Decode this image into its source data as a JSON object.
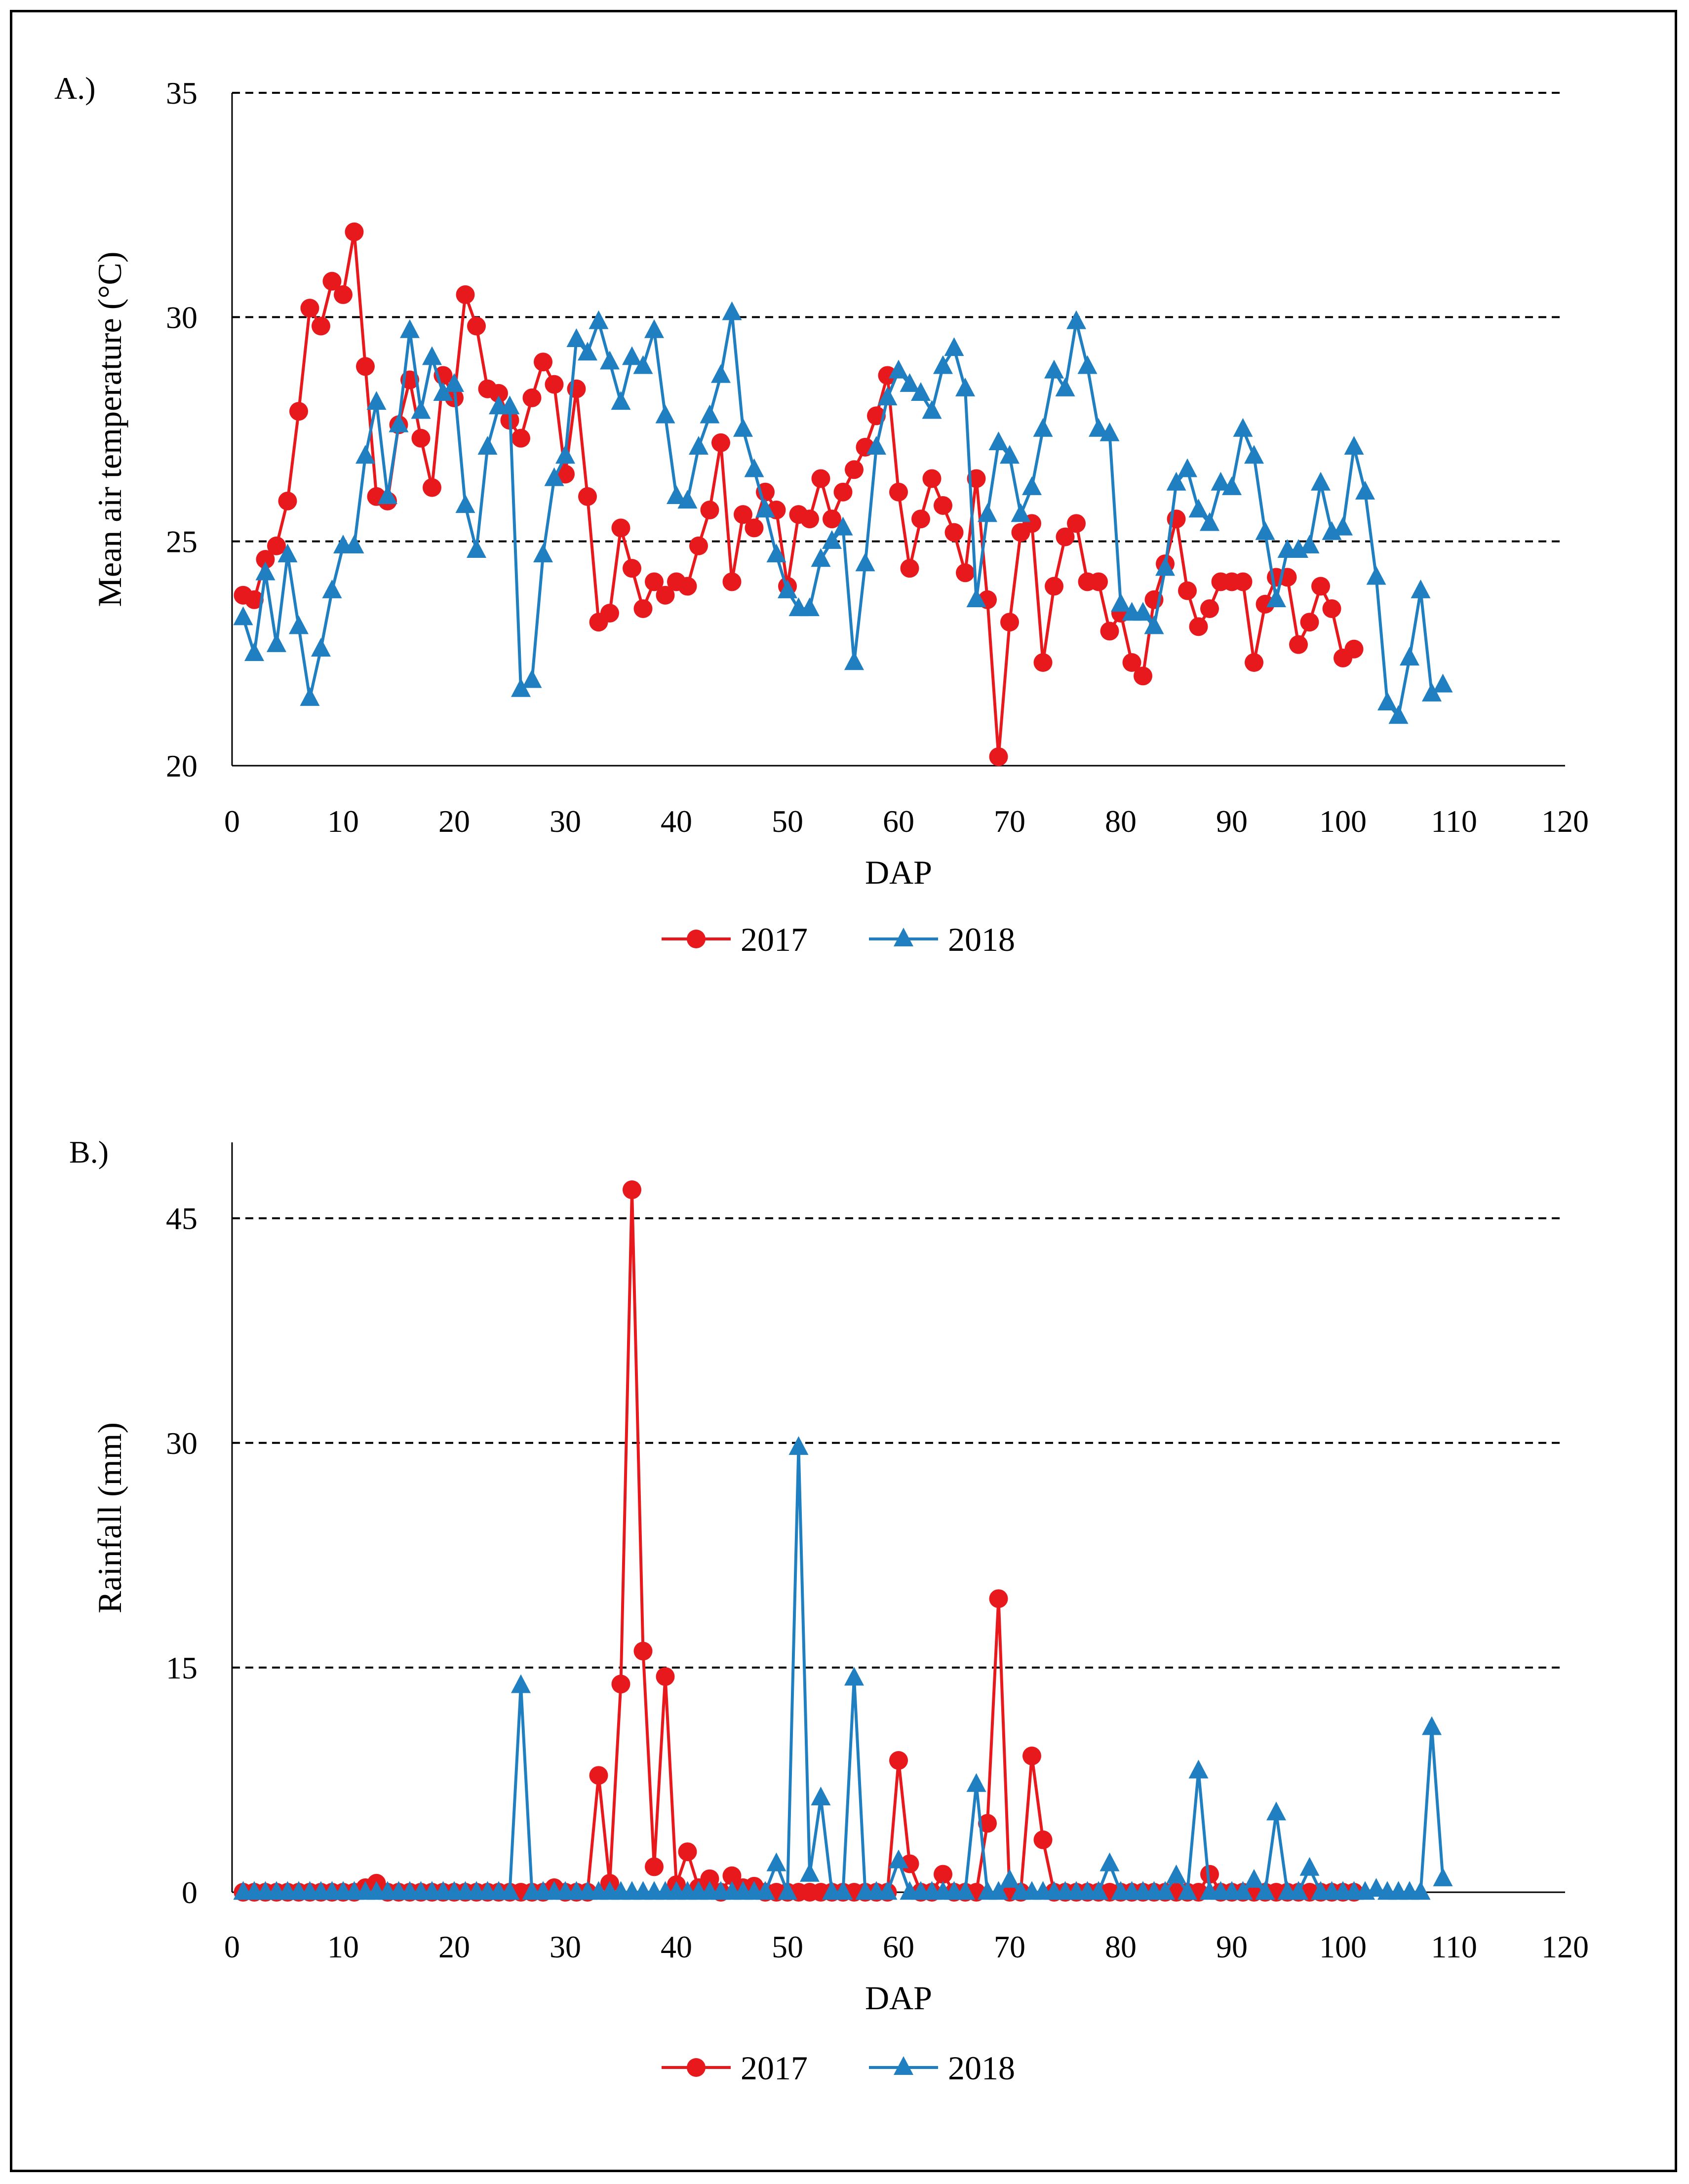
{
  "chart_data": [
    {
      "type": "line",
      "panel_label": "A.)",
      "title": "",
      "xlabel": "DAP",
      "ylabel": "Mean air temperature (°C)",
      "xlim": [
        0,
        120
      ],
      "ylim": [
        20,
        35
      ],
      "xticks": [
        0,
        10,
        20,
        30,
        40,
        50,
        60,
        70,
        80,
        90,
        100,
        110,
        120
      ],
      "yticks": [
        20,
        25,
        30,
        35
      ],
      "grid": "dashed horizontal",
      "legend": "bottom-center",
      "series": [
        {
          "name": "2017",
          "marker": "circle",
          "color": "#e8191c",
          "x": [
            1,
            2,
            3,
            4,
            5,
            6,
            7,
            8,
            9,
            10,
            11,
            12,
            13,
            14,
            15,
            16,
            17,
            18,
            19,
            20,
            21,
            22,
            23,
            24,
            25,
            26,
            27,
            28,
            29,
            30,
            31,
            32,
            33,
            34,
            35,
            36,
            37,
            38,
            39,
            40,
            41,
            42,
            43,
            44,
            45,
            46,
            47,
            48,
            49,
            50,
            51,
            52,
            53,
            54,
            55,
            56,
            57,
            58,
            59,
            60,
            61,
            62,
            63,
            64,
            65,
            66,
            67,
            68,
            69,
            70,
            71,
            72,
            73,
            74,
            75,
            76,
            77,
            78,
            79,
            80,
            81,
            82,
            83,
            84,
            85,
            86,
            87,
            88,
            89,
            90,
            91,
            92,
            93,
            94,
            95,
            96,
            97,
            98,
            99,
            100,
            101
          ],
          "y": [
            23.8,
            23.7,
            24.6,
            24.9,
            25.9,
            27.9,
            30.2,
            29.8,
            30.8,
            30.5,
            31.9,
            28.9,
            26.0,
            25.9,
            27.6,
            28.6,
            27.3,
            26.2,
            28.7,
            28.2,
            30.5,
            29.8,
            28.4,
            28.3,
            27.7,
            27.3,
            28.2,
            29.0,
            28.5,
            26.5,
            28.4,
            26.0,
            23.2,
            23.4,
            25.3,
            24.4,
            23.5,
            24.1,
            23.8,
            24.1,
            24.0,
            24.9,
            25.7,
            27.2,
            24.1,
            25.6,
            25.3,
            26.1,
            25.7,
            24.0,
            25.6,
            25.5,
            26.4,
            25.5,
            26.1,
            26.6,
            27.1,
            27.8,
            28.7,
            26.1,
            24.4,
            25.5,
            26.4,
            25.8,
            25.2,
            24.3,
            26.4,
            23.7,
            20.2,
            23.2,
            25.2,
            25.4,
            22.3,
            24.0,
            25.1,
            25.4,
            24.1,
            24.1,
            23.0,
            23.4,
            22.3,
            22.0,
            23.7,
            24.5,
            25.5,
            23.9,
            23.1,
            23.5,
            24.1,
            24.1,
            24.1,
            22.3,
            23.6,
            24.2,
            24.2,
            22.7,
            23.2,
            24.0,
            23.5,
            22.4,
            22.6
          ]
        },
        {
          "name": "2018",
          "marker": "triangle",
          "color": "#1f7fc0",
          "x": [
            1,
            2,
            3,
            4,
            5,
            6,
            7,
            8,
            9,
            10,
            11,
            12,
            13,
            14,
            15,
            16,
            17,
            18,
            19,
            20,
            21,
            22,
            23,
            24,
            25,
            26,
            27,
            28,
            29,
            30,
            31,
            32,
            33,
            34,
            35,
            36,
            37,
            38,
            39,
            40,
            41,
            42,
            43,
            44,
            45,
            46,
            47,
            48,
            49,
            50,
            51,
            52,
            53,
            54,
            55,
            56,
            57,
            58,
            59,
            60,
            61,
            62,
            63,
            64,
            65,
            66,
            67,
            68,
            69,
            70,
            71,
            72,
            73,
            74,
            75,
            76,
            77,
            78,
            79,
            80,
            81,
            82,
            83,
            84,
            85,
            86,
            87,
            88,
            89,
            90,
            91,
            92,
            93,
            94,
            95,
            96,
            97,
            98,
            99,
            100,
            101,
            102,
            103,
            104,
            105,
            106,
            107,
            108,
            109
          ],
          "y": [
            23.3,
            22.5,
            24.3,
            22.7,
            24.7,
            23.1,
            21.5,
            22.6,
            23.9,
            24.9,
            24.9,
            26.9,
            28.1,
            26.0,
            27.6,
            29.7,
            27.9,
            29.1,
            28.3,
            28.5,
            25.8,
            24.8,
            27.1,
            28.0,
            28.0,
            21.7,
            21.9,
            24.7,
            26.4,
            26.9,
            29.5,
            29.2,
            29.9,
            29.0,
            28.1,
            29.1,
            28.9,
            29.7,
            27.8,
            26.0,
            25.9,
            27.1,
            27.8,
            28.7,
            30.1,
            27.5,
            26.6,
            25.7,
            24.7,
            23.9,
            23.5,
            23.5,
            24.6,
            25.0,
            25.3,
            22.3,
            24.5,
            27.1,
            28.2,
            28.8,
            28.5,
            28.3,
            27.9,
            28.9,
            29.3,
            28.4,
            23.7,
            25.6,
            27.2,
            26.9,
            25.6,
            26.2,
            27.5,
            28.8,
            28.4,
            29.9,
            28.9,
            27.5,
            27.4,
            23.6,
            23.4,
            23.4,
            23.1,
            24.4,
            26.3,
            26.6,
            25.7,
            25.4,
            26.3,
            26.2,
            27.5,
            26.9,
            25.2,
            23.7,
            24.8,
            24.8,
            24.9,
            26.3,
            25.2,
            25.3,
            27.1,
            26.1,
            24.2,
            21.4,
            21.1,
            22.4,
            23.9,
            21.6,
            21.8
          ]
        }
      ]
    },
    {
      "type": "line",
      "panel_label": "B.)",
      "title": "",
      "xlabel": "DAP",
      "ylabel": "Rainfall (mm)",
      "xlim": [
        0,
        120
      ],
      "ylim": [
        0,
        50
      ],
      "xticks": [
        0,
        10,
        20,
        30,
        40,
        50,
        60,
        70,
        80,
        90,
        100,
        110,
        120
      ],
      "yticks": [
        0,
        15,
        30,
        45
      ],
      "grid": "dashed horizontal",
      "legend": "bottom-center",
      "series": [
        {
          "name": "2017",
          "marker": "circle",
          "color": "#e8191c",
          "x": [
            1,
            2,
            3,
            4,
            5,
            6,
            7,
            8,
            9,
            10,
            11,
            12,
            13,
            14,
            15,
            16,
            17,
            18,
            19,
            20,
            21,
            22,
            23,
            24,
            25,
            26,
            27,
            28,
            29,
            30,
            31,
            32,
            33,
            34,
            35,
            36,
            37,
            38,
            39,
            40,
            41,
            42,
            43,
            44,
            45,
            46,
            47,
            48,
            49,
            50,
            51,
            52,
            53,
            54,
            55,
            56,
            57,
            58,
            59,
            60,
            61,
            62,
            63,
            64,
            65,
            66,
            67,
            68,
            69,
            70,
            71,
            72,
            73,
            74,
            75,
            76,
            77,
            78,
            79,
            80,
            81,
            82,
            83,
            84,
            85,
            86,
            87,
            88,
            89,
            90,
            91,
            92,
            93,
            94,
            95,
            96,
            97,
            98,
            99,
            100,
            101
          ],
          "y": [
            0,
            0,
            0,
            0,
            0,
            0,
            0,
            0,
            0,
            0,
            0,
            0.3,
            0.6,
            0,
            0,
            0,
            0,
            0,
            0,
            0,
            0,
            0,
            0,
            0,
            0,
            0,
            0,
            0,
            0.3,
            0,
            0,
            0,
            7.8,
            0.6,
            13.9,
            46.9,
            16.1,
            1.7,
            14.4,
            0.5,
            2.7,
            0.3,
            0.9,
            0,
            1.1,
            0.3,
            0.4,
            0,
            0,
            0,
            0,
            0,
            0,
            0,
            0,
            0,
            0,
            0,
            0,
            8.8,
            1.9,
            0,
            0,
            1.2,
            0,
            0,
            0,
            4.6,
            19.6,
            0,
            0,
            9.1,
            3.5,
            0,
            0,
            0,
            0,
            0,
            0,
            0,
            0,
            0,
            0,
            0,
            0,
            0,
            0,
            1.2,
            0,
            0,
            0,
            0,
            0,
            0,
            0,
            0,
            0,
            0,
            0,
            0,
            0
          ]
        },
        {
          "name": "2018",
          "marker": "triangle",
          "color": "#1f7fc0",
          "x": [
            1,
            2,
            3,
            4,
            5,
            6,
            7,
            8,
            9,
            10,
            11,
            12,
            13,
            14,
            15,
            16,
            17,
            18,
            19,
            20,
            21,
            22,
            23,
            24,
            25,
            26,
            27,
            28,
            29,
            30,
            31,
            32,
            33,
            34,
            35,
            36,
            37,
            38,
            39,
            40,
            41,
            42,
            43,
            44,
            45,
            46,
            47,
            48,
            49,
            50,
            51,
            52,
            53,
            54,
            55,
            56,
            57,
            58,
            59,
            60,
            61,
            62,
            63,
            64,
            65,
            66,
            67,
            68,
            69,
            70,
            71,
            72,
            73,
            74,
            75,
            76,
            77,
            78,
            79,
            80,
            81,
            82,
            83,
            84,
            85,
            86,
            87,
            88,
            89,
            90,
            91,
            92,
            93,
            94,
            95,
            96,
            97,
            98,
            99,
            100,
            101,
            102,
            103,
            104,
            105,
            106,
            107,
            108,
            109
          ],
          "y": [
            0,
            0,
            0,
            0,
            0,
            0,
            0,
            0,
            0,
            0,
            0,
            0,
            0,
            0,
            0,
            0,
            0,
            0,
            0,
            0,
            0,
            0,
            0,
            0,
            0,
            13.8,
            0,
            0,
            0,
            0,
            0,
            0,
            0,
            0,
            0,
            0,
            0,
            0,
            0,
            0,
            0,
            0,
            0,
            0,
            0,
            0,
            0,
            0,
            1.9,
            0,
            29.7,
            1.2,
            6.3,
            0,
            0,
            14.3,
            0,
            0,
            0,
            2.1,
            0,
            0,
            0,
            0,
            0,
            0,
            7.2,
            0,
            0,
            0.8,
            0,
            0,
            0,
            0,
            0,
            0,
            0,
            0,
            1.9,
            0,
            0,
            0,
            0,
            0,
            1.1,
            0,
            8.1,
            0,
            0,
            0,
            0,
            0.8,
            0,
            5.3,
            0,
            0,
            1.6,
            0,
            0,
            0,
            0,
            0,
            0.2,
            0,
            0,
            0,
            0,
            11.0,
            0.9
          ]
        }
      ]
    }
  ]
}
